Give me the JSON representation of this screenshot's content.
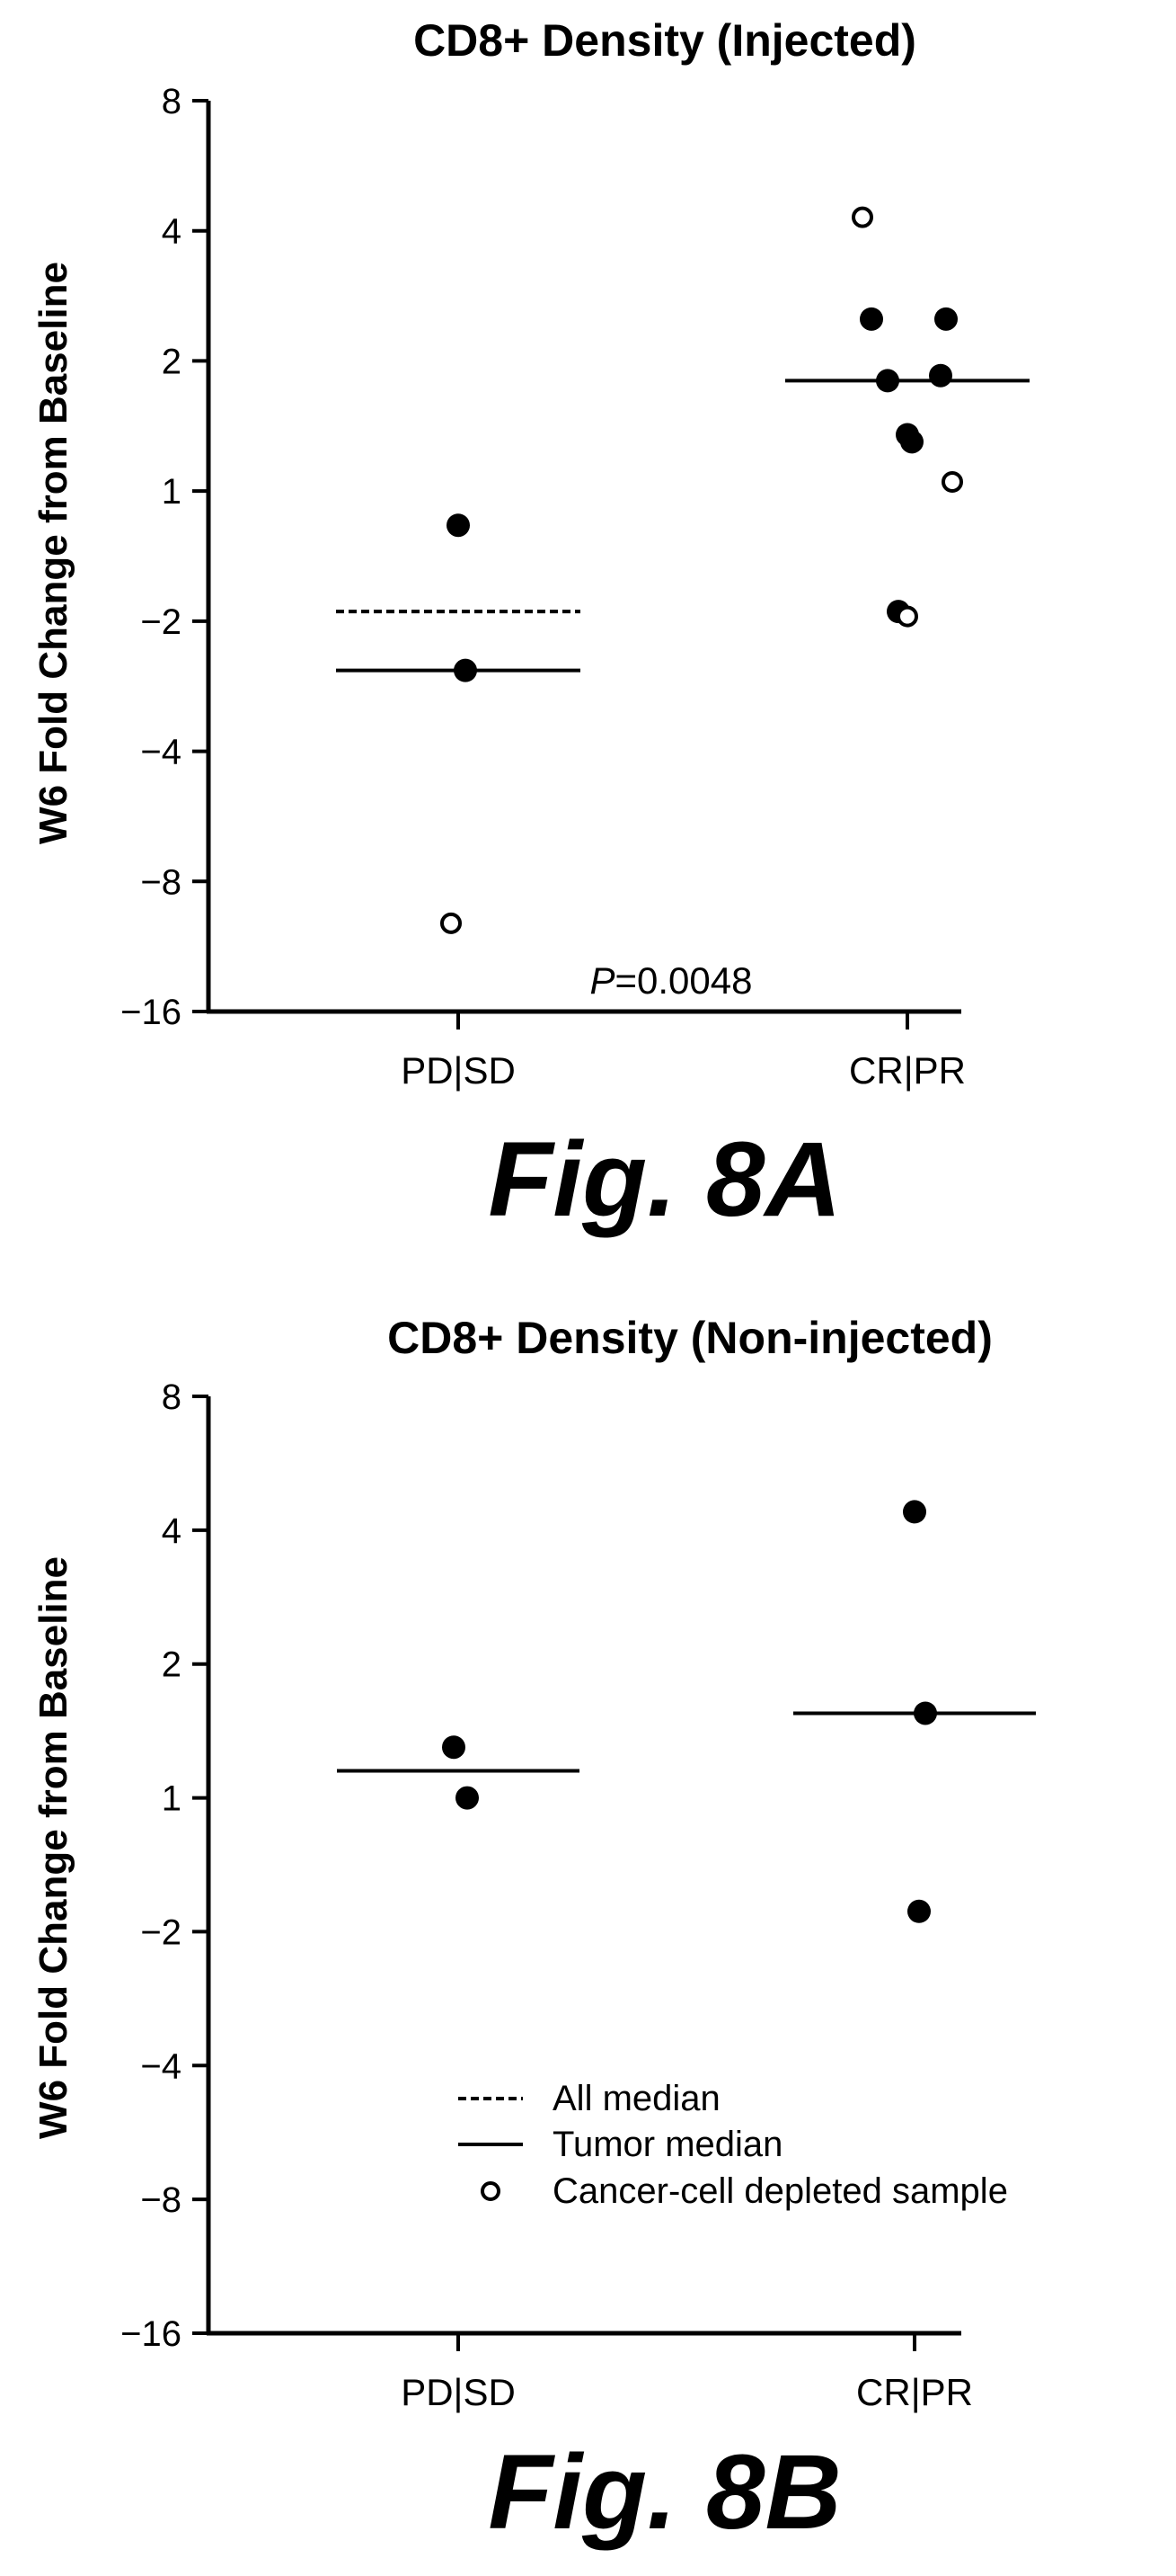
{
  "legend": {
    "placement": "bottom-center",
    "entries": [
      {
        "style": "dashed-line",
        "label": "All median"
      },
      {
        "style": "solid-line",
        "label": "Tumor median"
      },
      {
        "style": "open-circle",
        "label": "Cancer-cell depleted sample"
      }
    ]
  },
  "chart_data": [
    {
      "type": "scatter",
      "title": "CD8+ Density (Injected)",
      "figure_label": "Fig. 8A",
      "ylabel": "W6 Fold Change from Baseline",
      "xlabel": "",
      "yscale": "log2",
      "ylim": [
        -16,
        8
      ],
      "y_ticks": [
        "8",
        "4",
        "2",
        "1",
        "−2",
        "−4",
        "−8",
        "−16"
      ],
      "categories": [
        "PD|SD",
        "CR|PR"
      ],
      "annotation": {
        "prefix": "P",
        "text": "=0.0048"
      },
      "grid": false,
      "points": {
        "PD|SD": [
          {
            "y": -1.2,
            "filled": true
          },
          {
            "y": -2.6,
            "filled": true
          },
          {
            "y": -10,
            "filled": false
          }
        ],
        "CR|PR": [
          {
            "y": 4.3,
            "filled": false
          },
          {
            "y": 2.5,
            "filled": true
          },
          {
            "y": 2.5,
            "filled": true
          },
          {
            "y": 1.8,
            "filled": true
          },
          {
            "y": 1.85,
            "filled": true
          },
          {
            "y": 1.3,
            "filled": true
          },
          {
            "y": 1.35,
            "filled": true
          },
          {
            "y": 1.05,
            "filled": false
          },
          {
            "y": -1.9,
            "filled": true
          },
          {
            "y": -1.95,
            "filled": false
          }
        ]
      },
      "medians": {
        "all": {
          "PD|SD": -1.9
        },
        "tumor": {
          "PD|SD": -2.6,
          "CR|PR": 1.8
        }
      }
    },
    {
      "type": "scatter",
      "title": "CD8+ Density (Non-injected)",
      "figure_label": "Fig. 8B",
      "ylabel": "W6 Fold Change from Baseline",
      "xlabel": "",
      "yscale": "log2",
      "ylim": [
        -16,
        8
      ],
      "y_ticks": [
        "8",
        "4",
        "2",
        "1",
        "−2",
        "−4",
        "−8",
        "−16"
      ],
      "categories": [
        "PD|SD",
        "CR|PR"
      ],
      "grid": false,
      "points": {
        "PD|SD": [
          {
            "y": 1.3,
            "filled": true
          },
          {
            "y": 1.0,
            "filled": true
          }
        ],
        "CR|PR": [
          {
            "y": 4.4,
            "filled": true
          },
          {
            "y": 1.55,
            "filled": true
          },
          {
            "y": -1.8,
            "filled": true
          }
        ]
      },
      "medians": {
        "tumor": {
          "PD|SD": 1.15,
          "CR|PR": 1.55
        }
      }
    }
  ]
}
